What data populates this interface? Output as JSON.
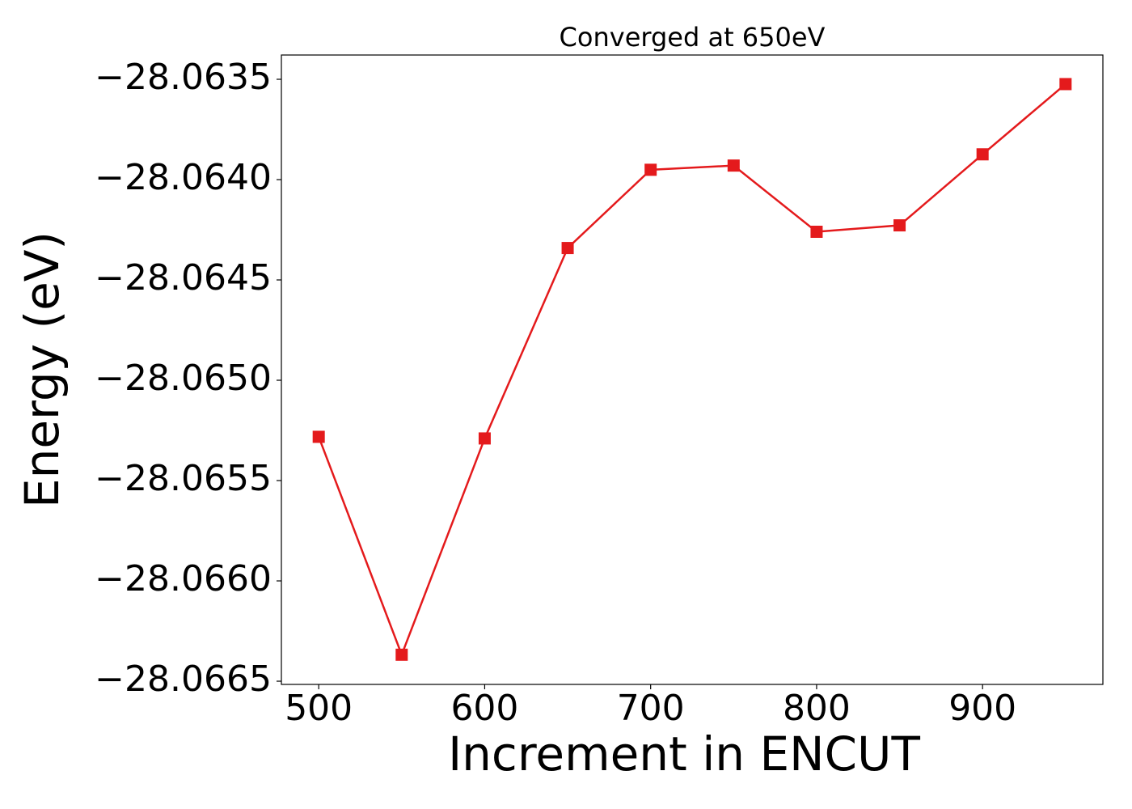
{
  "chart_data": {
    "type": "line",
    "title": "Converged at 650eV",
    "x_label": "Increment in ENCUT",
    "y_label": "Energy (eV)",
    "x": [
      500,
      550,
      600,
      650,
      700,
      750,
      800,
      850,
      900,
      950
    ],
    "series": [
      {
        "color": "#e41a1c",
        "marker": "square",
        "values": [
          -28.065282,
          -28.066368,
          -28.06529,
          -28.064341,
          -28.063951,
          -28.06393,
          -28.06426,
          -28.064228,
          -28.063874,
          -28.063524
        ]
      }
    ],
    "xlim": [
      477.5,
      972.5
    ],
    "ylim": [
      -28.066516,
      -28.063379
    ],
    "xticks": [
      500,
      600,
      700,
      800,
      900
    ],
    "yticks": [
      {
        "value": -28.0665,
        "label": "−28.0665"
      },
      {
        "value": -28.066,
        "label": "−28.0660"
      },
      {
        "value": -28.0655,
        "label": "−28.0655"
      },
      {
        "value": -28.065,
        "label": "−28.0650"
      },
      {
        "value": -28.0645,
        "label": "−28.0645"
      },
      {
        "value": -28.064,
        "label": "−28.0640"
      },
      {
        "value": -28.0635,
        "label": "−28.0635"
      }
    ],
    "grid": false
  }
}
